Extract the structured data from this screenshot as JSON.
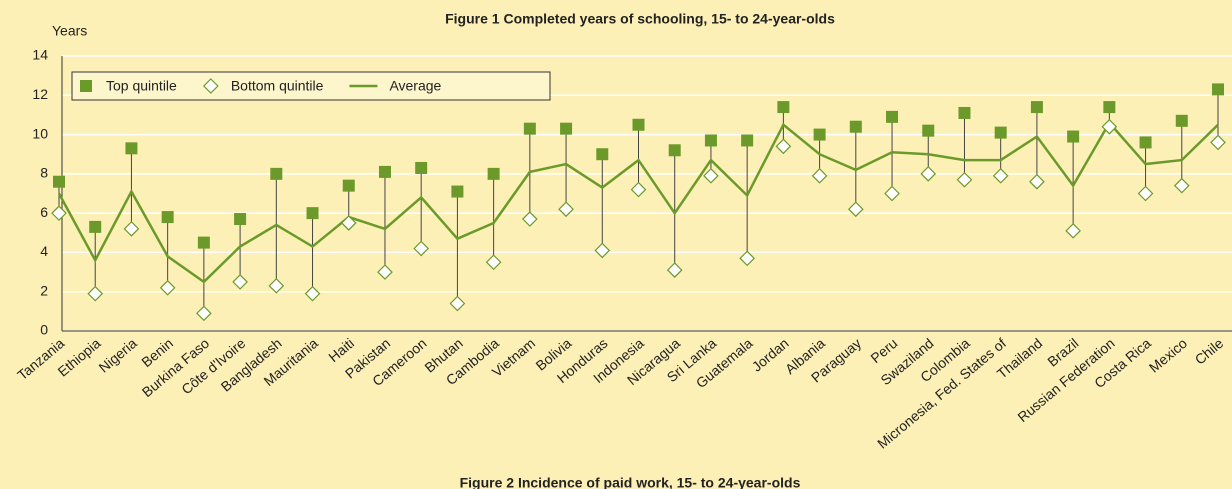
{
  "chart_data": {
    "type": "line",
    "title": "Figure 1  Completed years of schooling, 15- to 24-year-olds",
    "y_label": "Years",
    "categories": [
      "Tanzania",
      "Ethiopia",
      "Nigeria",
      "Benin",
      "Burkina Faso",
      "Côte d'Ivoire",
      "Bangladesh",
      "Mauritania",
      "Haiti",
      "Pakistan",
      "Cameroon",
      "Bhutan",
      "Cambodia",
      "Vietnam",
      "Bolivia",
      "Honduras",
      "Indonesia",
      "Nicaragua",
      "Sri Lanka",
      "Guatemala",
      "Jordan",
      "Albania",
      "Paraguay",
      "Peru",
      "Swaziland",
      "Colombia",
      "Micronesia, Fed. States of",
      "Thailand",
      "Brazil",
      "Russian Federation",
      "Costa Rica",
      "Mexico",
      "Chile"
    ],
    "series": [
      {
        "name": "Top quintile",
        "color": "#6b9a2b",
        "marker": "square",
        "values": [
          7.6,
          5.3,
          9.3,
          5.8,
          4.5,
          5.7,
          8.0,
          6.0,
          7.4,
          8.1,
          8.3,
          7.1,
          8.0,
          10.3,
          10.3,
          9.0,
          10.5,
          9.2,
          9.7,
          9.7,
          11.4,
          10.0,
          10.4,
          10.9,
          10.2,
          11.1,
          10.1,
          11.4,
          9.9,
          11.4,
          9.6,
          10.7,
          12.3
        ]
      },
      {
        "name": "Bottom quintile",
        "color": "#ffffff",
        "marker": "diamond",
        "values": [
          6.0,
          1.9,
          5.2,
          2.2,
          0.9,
          2.5,
          2.3,
          1.9,
          5.5,
          3.0,
          4.2,
          1.4,
          3.5,
          5.7,
          6.2,
          4.1,
          7.2,
          3.1,
          7.9,
          3.7,
          9.4,
          7.9,
          6.2,
          7.0,
          8.0,
          7.7,
          7.9,
          7.6,
          5.1,
          10.4,
          7.0,
          7.4,
          9.6
        ]
      },
      {
        "name": "Average",
        "color": "#6b9a2b",
        "marker": "line",
        "values": [
          7.0,
          3.6,
          7.1,
          3.8,
          2.5,
          4.3,
          5.4,
          4.3,
          5.8,
          5.2,
          6.8,
          4.7,
          5.5,
          8.1,
          8.5,
          7.3,
          8.7,
          6.0,
          8.7,
          6.9,
          10.5,
          9.0,
          8.2,
          9.1,
          9.0,
          8.7,
          8.7,
          9.9,
          7.4,
          10.6,
          8.5,
          8.7,
          10.5
        ]
      }
    ],
    "ylim": [
      0,
      14
    ],
    "yticks": [
      0,
      2,
      4,
      6,
      8,
      10,
      12,
      14
    ],
    "grid": true,
    "legend": "upper-left"
  },
  "footer": {
    "title": "Figure 2  Incidence of paid work, 15- to 24-year-olds"
  }
}
